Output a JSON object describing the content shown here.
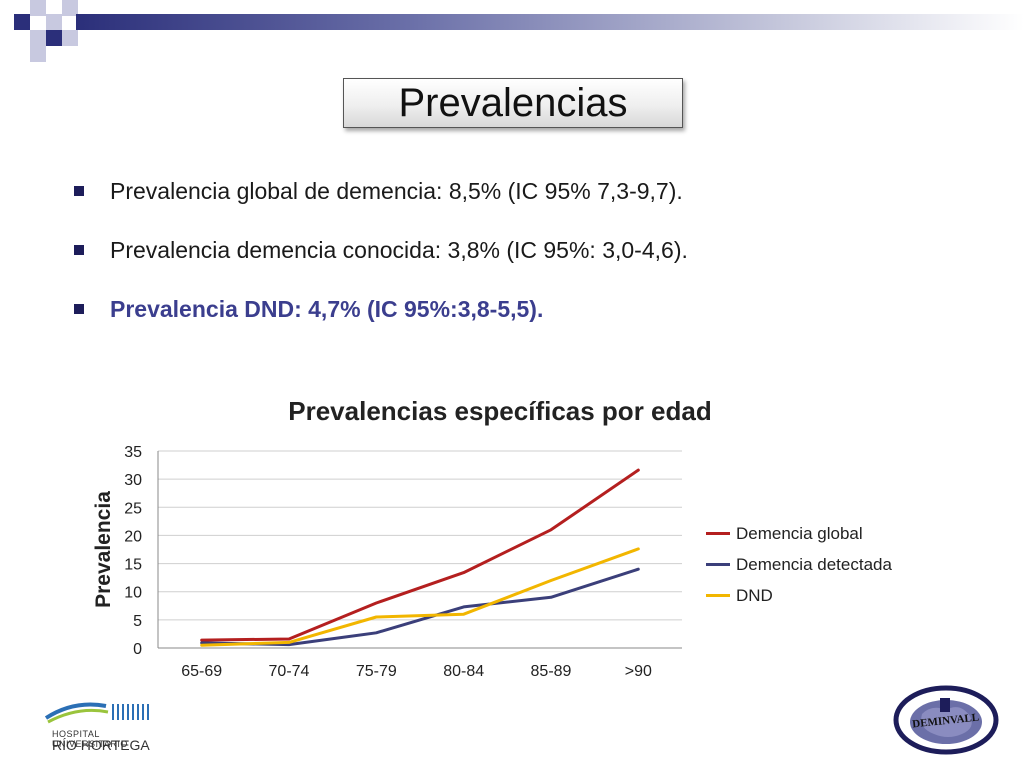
{
  "slide": {
    "title": "Prevalencias",
    "bullets": [
      {
        "text": "Prevalencia global de demencia: 8,5% (IC 95% 7,3-9,7).",
        "highlight": false
      },
      {
        "text": "Prevalencia demencia conocida: 3,8% (IC 95%: 3,0-4,6).",
        "highlight": false
      },
      {
        "text": "Prevalencia DND: 4,7% (IC 95%:3,8-5,5).",
        "highlight": true
      }
    ]
  },
  "chart_data": {
    "type": "line",
    "title": "Prevalencias específicas por edad",
    "xlabel": "",
    "ylabel": "Prevalencia",
    "categories": [
      "65-69",
      "70-74",
      "75-79",
      "80-84",
      "85-89",
      ">90"
    ],
    "ylim": [
      0,
      35
    ],
    "yticks": [
      0,
      5,
      10,
      15,
      20,
      25,
      30,
      35
    ],
    "grid": true,
    "legend_position": "right",
    "series": [
      {
        "name": "Demencia global",
        "color": "#b41f1f",
        "values": [
          1.4,
          1.6,
          8.0,
          13.4,
          21.0,
          31.6
        ]
      },
      {
        "name": "Demencia detectada",
        "color": "#3b3f7a",
        "values": [
          0.9,
          0.6,
          2.7,
          7.3,
          9.0,
          14.0
        ]
      },
      {
        "name": "DND",
        "color": "#f2b600",
        "values": [
          0.5,
          1.0,
          5.5,
          6.0,
          12.0,
          17.6
        ]
      }
    ]
  },
  "logos": {
    "hospital_line1": "HOSPITAL UNIVERSITARIO",
    "hospital_line2": "RÍO HORTEGA",
    "project": "DEMINVALL"
  }
}
